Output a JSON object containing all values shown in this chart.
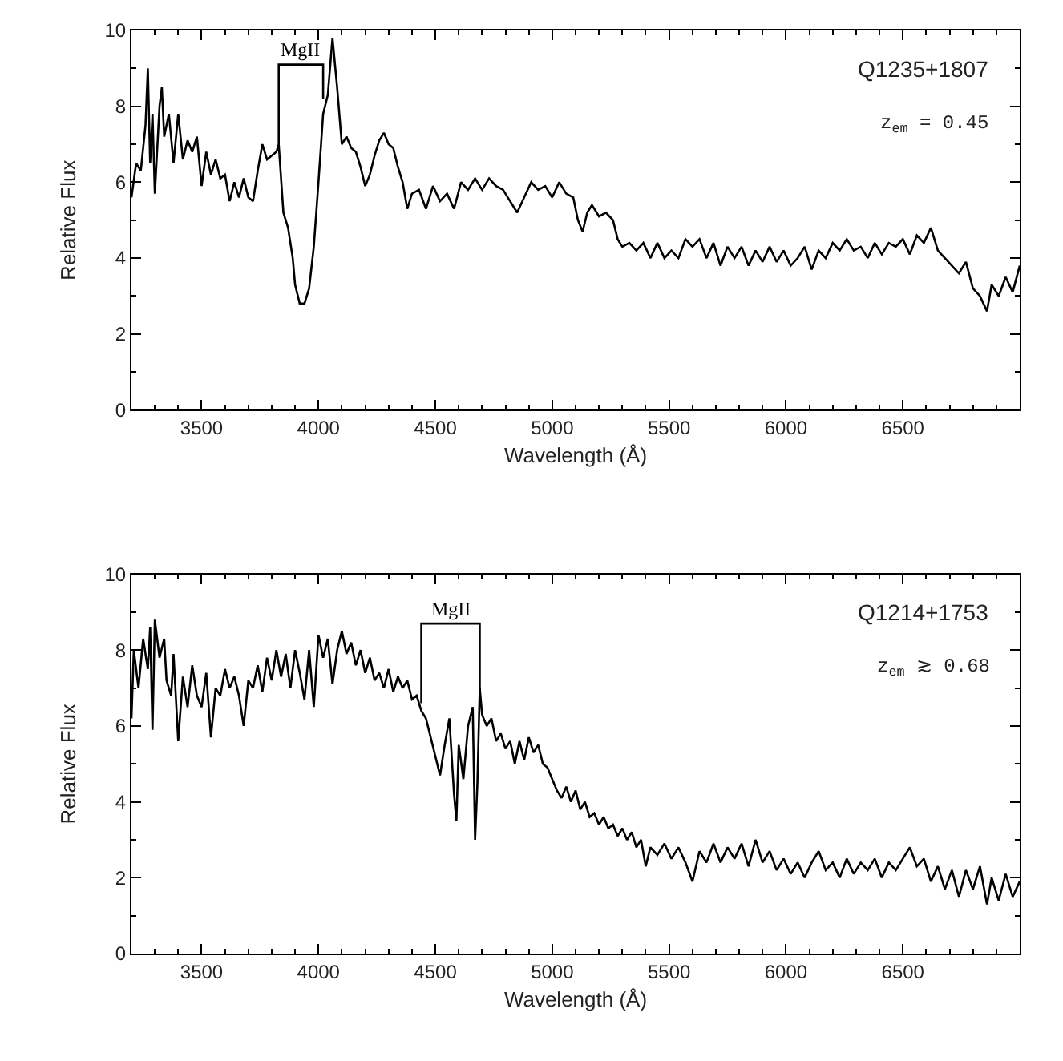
{
  "chart_data": [
    {
      "type": "line",
      "xlabel": "Wavelength (Å)",
      "ylabel": "Relative Flux",
      "xlim": [
        3200,
        7000
      ],
      "xticks": [
        3500,
        4000,
        4500,
        5000,
        5500,
        6000,
        6500
      ],
      "ylim": [
        0,
        10
      ],
      "yticks": [
        0,
        2,
        4,
        6,
        8,
        10
      ],
      "grid": false,
      "legend": "top",
      "marker": "none",
      "line_style": "solid",
      "annotations": [
        "Q1235+1807",
        "z$_{em}$ = 0.45"
      ],
      "series": [
        {
          "name": "MgII",
          "color": "#000000",
          "x": [
            3830,
            3830,
            4020,
            4020
          ],
          "values": [
            7.0,
            9.1,
            9.1,
            8.2
          ]
        },
        {
          "color": "#000000",
          "x": [
            3200,
            3220,
            3240,
            3260,
            3270,
            3280,
            3290,
            3300,
            3320,
            3330,
            3340,
            3360,
            3380,
            3400,
            3420,
            3440,
            3460,
            3480,
            3500,
            3520,
            3540,
            3560,
            3580,
            3600,
            3620,
            3640,
            3660,
            3680,
            3700,
            3720,
            3740,
            3760,
            3780,
            3800,
            3820,
            3830,
            3850,
            3870,
            3890,
            3900,
            3920,
            3940,
            3960,
            3980,
            4000,
            4020,
            4040,
            4060,
            4080,
            4100,
            4120,
            4140,
            4160,
            4180,
            4200,
            4220,
            4240,
            4260,
            4280,
            4300,
            4320,
            4340,
            4360,
            4380,
            4400,
            4430,
            4460,
            4490,
            4520,
            4550,
            4580,
            4610,
            4640,
            4670,
            4700,
            4730,
            4760,
            4790,
            4820,
            4850,
            4880,
            4910,
            4940,
            4970,
            5000,
            5030,
            5060,
            5090,
            5110,
            5130,
            5150,
            5170,
            5200,
            5230,
            5260,
            5280,
            5300,
            5330,
            5360,
            5390,
            5420,
            5450,
            5480,
            5510,
            5540,
            5570,
            5600,
            5630,
            5660,
            5690,
            5720,
            5750,
            5780,
            5810,
            5840,
            5870,
            5900,
            5930,
            5960,
            5990,
            6020,
            6050,
            6080,
            6110,
            6140,
            6170,
            6200,
            6230,
            6260,
            6290,
            6320,
            6350,
            6380,
            6410,
            6440,
            6470,
            6500,
            6530,
            6560,
            6590,
            6620,
            6650,
            6680,
            6710,
            6740,
            6770,
            6800,
            6830,
            6860,
            6880,
            6910,
            6940,
            6970,
            7000
          ],
          "values": [
            5.6,
            6.5,
            6.3,
            7.5,
            9.0,
            6.5,
            7.8,
            5.7,
            8.0,
            8.5,
            7.2,
            7.8,
            6.5,
            7.8,
            6.6,
            7.1,
            6.8,
            7.2,
            5.9,
            6.8,
            6.2,
            6.6,
            6.1,
            6.2,
            5.5,
            6.0,
            5.6,
            6.1,
            5.6,
            5.5,
            6.3,
            7.0,
            6.6,
            6.7,
            6.8,
            7.0,
            5.2,
            4.8,
            4.0,
            3.3,
            2.8,
            2.8,
            3.2,
            4.3,
            6.0,
            7.8,
            8.3,
            9.8,
            8.5,
            7.0,
            7.2,
            6.9,
            6.8,
            6.4,
            5.9,
            6.2,
            6.7,
            7.1,
            7.3,
            7.0,
            6.9,
            6.4,
            6.0,
            5.3,
            5.7,
            5.8,
            5.3,
            5.9,
            5.5,
            5.7,
            5.3,
            6.0,
            5.8,
            6.1,
            5.8,
            6.1,
            5.9,
            5.8,
            5.5,
            5.2,
            5.6,
            6.0,
            5.8,
            5.9,
            5.6,
            6.0,
            5.7,
            5.6,
            5.0,
            4.7,
            5.2,
            5.4,
            5.1,
            5.2,
            5.0,
            4.5,
            4.3,
            4.4,
            4.2,
            4.4,
            4.0,
            4.4,
            4.0,
            4.2,
            4.0,
            4.5,
            4.3,
            4.5,
            4.0,
            4.4,
            3.8,
            4.3,
            4.0,
            4.3,
            3.8,
            4.2,
            3.9,
            4.3,
            3.9,
            4.2,
            3.8,
            4.0,
            4.3,
            3.7,
            4.2,
            4.0,
            4.4,
            4.2,
            4.5,
            4.2,
            4.3,
            4.0,
            4.4,
            4.1,
            4.4,
            4.3,
            4.5,
            4.1,
            4.6,
            4.4,
            4.8,
            4.2,
            4.0,
            3.8,
            3.6,
            3.9,
            3.2,
            3.0,
            2.6,
            3.3,
            3.0,
            3.5,
            3.1,
            3.8
          ]
        }
      ]
    },
    {
      "type": "line",
      "xlabel": "Wavelength (Å)",
      "ylabel": "Relative Flux",
      "xlim": [
        3200,
        7000
      ],
      "xticks": [
        3500,
        4000,
        4500,
        5000,
        5500,
        6000,
        6500
      ],
      "ylim": [
        0,
        10
      ],
      "yticks": [
        0,
        2,
        4,
        6,
        8,
        10
      ],
      "grid": false,
      "legend": "top",
      "marker": "none",
      "line_style": "solid",
      "annotations": [
        "Q1214+1753",
        "z$_{em}$ ≳ 0.68"
      ],
      "series": [
        {
          "name": "MgII",
          "color": "#000000",
          "x": [
            4440,
            4440,
            4690,
            4690
          ],
          "values": [
            6.6,
            8.7,
            8.7,
            6.9
          ]
        },
        {
          "color": "#000000",
          "x": [
            3200,
            3210,
            3230,
            3250,
            3270,
            3280,
            3290,
            3300,
            3320,
            3340,
            3350,
            3370,
            3380,
            3400,
            3420,
            3440,
            3460,
            3480,
            3500,
            3520,
            3540,
            3560,
            3580,
            3600,
            3620,
            3640,
            3660,
            3680,
            3700,
            3720,
            3740,
            3760,
            3780,
            3800,
            3820,
            3840,
            3860,
            3880,
            3900,
            3920,
            3940,
            3960,
            3980,
            4000,
            4020,
            4040,
            4060,
            4080,
            4100,
            4120,
            4140,
            4160,
            4180,
            4200,
            4220,
            4240,
            4260,
            4280,
            4300,
            4320,
            4340,
            4360,
            4380,
            4400,
            4420,
            4440,
            4460,
            4480,
            4500,
            4520,
            4540,
            4560,
            4580,
            4590,
            4600,
            4620,
            4640,
            4660,
            4670,
            4680,
            4690,
            4700,
            4720,
            4740,
            4760,
            4780,
            4800,
            4820,
            4840,
            4860,
            4880,
            4900,
            4920,
            4940,
            4960,
            4980,
            5000,
            5020,
            5040,
            5060,
            5080,
            5100,
            5120,
            5140,
            5160,
            5180,
            5200,
            5220,
            5240,
            5260,
            5280,
            5300,
            5320,
            5340,
            5360,
            5380,
            5400,
            5420,
            5450,
            5480,
            5510,
            5540,
            5570,
            5600,
            5630,
            5660,
            5690,
            5720,
            5750,
            5780,
            5810,
            5840,
            5870,
            5900,
            5930,
            5960,
            5990,
            6020,
            6050,
            6080,
            6110,
            6140,
            6170,
            6200,
            6230,
            6260,
            6290,
            6320,
            6350,
            6380,
            6410,
            6440,
            6470,
            6500,
            6530,
            6560,
            6590,
            6620,
            6650,
            6680,
            6710,
            6740,
            6770,
            6800,
            6830,
            6860,
            6880,
            6910,
            6940,
            6970,
            7000
          ],
          "values": [
            6.2,
            8.0,
            7.0,
            8.3,
            7.5,
            8.6,
            5.9,
            8.8,
            7.8,
            8.3,
            7.2,
            6.8,
            7.9,
            5.6,
            7.3,
            6.5,
            7.6,
            6.8,
            6.5,
            7.4,
            5.7,
            7.0,
            6.8,
            7.5,
            7.0,
            7.3,
            6.8,
            6.0,
            7.2,
            7.0,
            7.6,
            6.9,
            7.8,
            7.2,
            8.0,
            7.3,
            7.9,
            7.0,
            8.0,
            7.4,
            6.7,
            8.0,
            6.5,
            8.4,
            7.8,
            8.3,
            7.1,
            8.0,
            8.5,
            7.9,
            8.2,
            7.6,
            8.0,
            7.4,
            7.8,
            7.2,
            7.4,
            7.0,
            7.5,
            6.9,
            7.3,
            7.0,
            7.2,
            6.7,
            6.8,
            6.4,
            6.2,
            5.7,
            5.2,
            4.7,
            5.5,
            6.2,
            4.2,
            3.5,
            5.5,
            4.6,
            6.0,
            6.5,
            3.0,
            4.5,
            7.0,
            6.3,
            6.0,
            6.2,
            5.6,
            5.8,
            5.4,
            5.6,
            5.0,
            5.6,
            5.1,
            5.7,
            5.3,
            5.5,
            5.0,
            4.9,
            4.6,
            4.3,
            4.1,
            4.4,
            4.0,
            4.3,
            3.8,
            4.0,
            3.6,
            3.7,
            3.4,
            3.6,
            3.3,
            3.4,
            3.1,
            3.3,
            3.0,
            3.2,
            2.8,
            3.0,
            2.3,
            2.8,
            2.6,
            2.9,
            2.5,
            2.8,
            2.4,
            1.9,
            2.7,
            2.4,
            2.9,
            2.4,
            2.8,
            2.5,
            2.9,
            2.3,
            3.0,
            2.4,
            2.7,
            2.2,
            2.5,
            2.1,
            2.4,
            2.0,
            2.4,
            2.7,
            2.2,
            2.4,
            2.0,
            2.5,
            2.1,
            2.4,
            2.2,
            2.5,
            2.0,
            2.4,
            2.2,
            2.5,
            2.8,
            2.3,
            2.5,
            1.9,
            2.3,
            1.7,
            2.2,
            1.5,
            2.2,
            1.7,
            2.3,
            1.3,
            2.0,
            1.4,
            2.1,
            1.5,
            1.9
          ]
        }
      ]
    }
  ]
}
